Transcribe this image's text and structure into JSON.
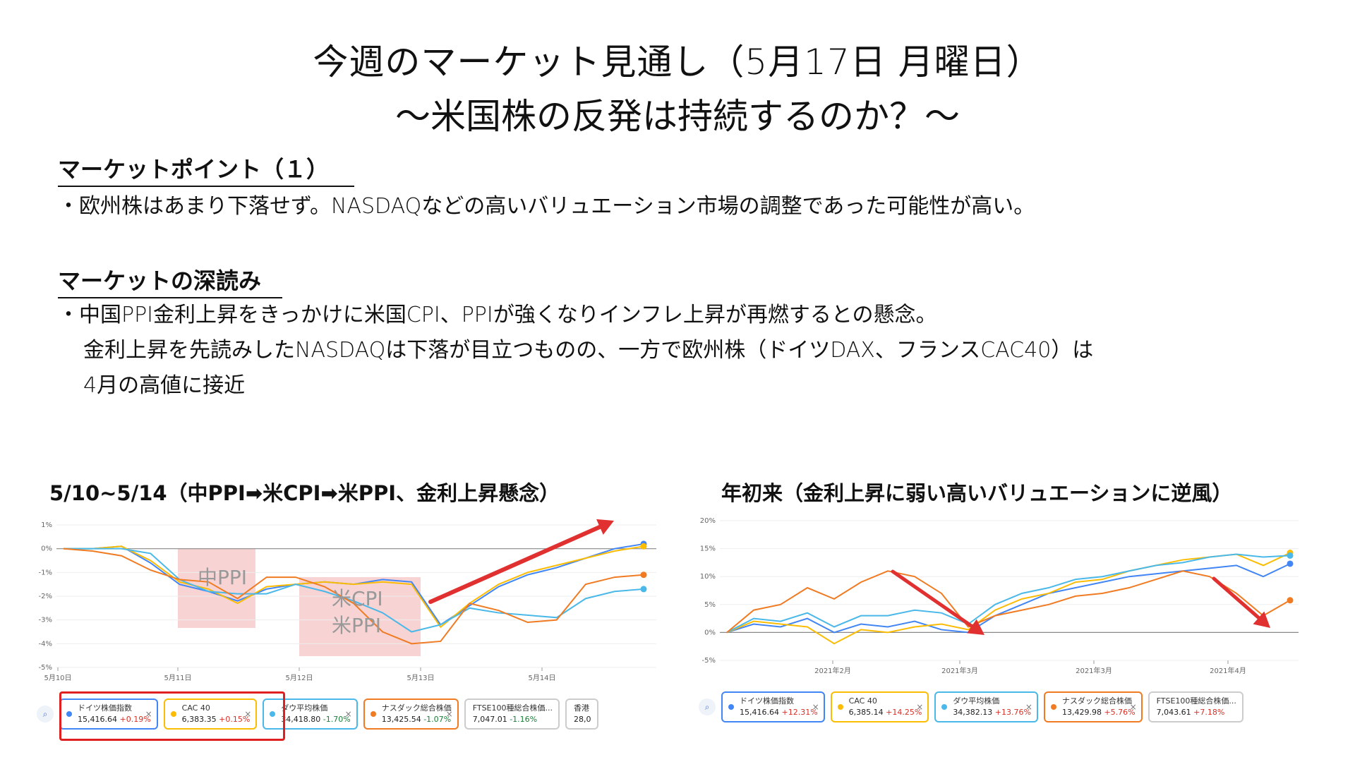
{
  "header": {
    "title_line1": "今週のマーケット見通し（5月17日 月曜日）",
    "title_line2": "〜米国株の反発は持続するのか？〜"
  },
  "section1": {
    "heading": "マーケットポイント（１）",
    "bullet": "・欧州株はあまり下落せず。NASDAQなどの高いバリュエーション市場の調整であった可能性が高い。"
  },
  "section2": {
    "heading": "マーケットの深読み",
    "line1": "・中国PPI金利上昇をきっかけに米国CPI、PPIが強くなりインフレ上昇が再燃するとの懸念。",
    "line2": "金利上昇を先読みしたNASDAQは下落が目立つものの、一方で欧州株（ドイツDAX、フランスCAC40）は",
    "line3": "4月の高値に接近"
  },
  "colors": {
    "dax": "#4285f4",
    "cac": "#fbbc04",
    "dow": "#4ab8e8",
    "nasdaq": "#f07b22",
    "annotation": "#e03030",
    "highlight": "#f4c4c4"
  },
  "chart_data": [
    {
      "type": "line",
      "title": "5/10~5/14（中PPI➡米CPI➡米PPI、金利上昇懸念）",
      "y_ticks": [
        "1%",
        "0%",
        "-1%",
        "-2%",
        "-3%",
        "-4%",
        "-5%"
      ],
      "ylim": [
        -5,
        1
      ],
      "x_ticks": [
        "5月10日",
        "5月11日",
        "5月12日",
        "5月13日",
        "5月14日"
      ],
      "annotations": [
        "中PPI",
        "米CPI",
        "米PPI"
      ],
      "series": [
        {
          "name": "ドイツ株価指数",
          "values": [
            0.0,
            0.0,
            0.1,
            -0.6,
            -1.5,
            -1.8,
            -2.2,
            -1.7,
            -1.5,
            -1.4,
            -1.5,
            -1.3,
            -1.4,
            -3.2,
            -2.4,
            -1.6,
            -1.1,
            -0.8,
            -0.4,
            0.0,
            0.2
          ]
        },
        {
          "name": "CAC 40",
          "values": [
            0.0,
            0.0,
            0.1,
            -0.5,
            -1.4,
            -1.7,
            -2.3,
            -1.6,
            -1.5,
            -1.4,
            -1.5,
            -1.4,
            -1.5,
            -3.3,
            -2.3,
            -1.5,
            -1.0,
            -0.7,
            -0.4,
            -0.1,
            0.1
          ]
        },
        {
          "name": "ダウ平均株価",
          "values": [
            0.0,
            0.0,
            0.0,
            -0.2,
            -1.3,
            -1.8,
            -1.9,
            -1.9,
            -1.5,
            -1.8,
            -2.2,
            -2.7,
            -3.5,
            -3.2,
            -2.5,
            -2.7,
            -2.8,
            -2.9,
            -2.1,
            -1.8,
            -1.7
          ]
        },
        {
          "name": "ナスダック総合株価",
          "values": [
            0.0,
            -0.1,
            -0.3,
            -0.9,
            -1.3,
            -1.4,
            -2.1,
            -1.2,
            -1.2,
            -1.6,
            -2.3,
            -3.5,
            -4.0,
            -3.9,
            -2.3,
            -2.6,
            -3.1,
            -3.0,
            -1.5,
            -1.2,
            -1.1
          ]
        }
      ],
      "legend": [
        {
          "name": "ドイツ株価指数",
          "value": "15,416.64",
          "change": "+0.19%"
        },
        {
          "name": "CAC 40",
          "value": "6,383.35",
          "change": "+0.15%"
        },
        {
          "name": "ダウ平均株価",
          "value": "34,418.80",
          "change": "-1.70%"
        },
        {
          "name": "ナスダック総合株価",
          "value": "13,425.54",
          "change": "-1.07%"
        },
        {
          "name": "FTSE100種総合株価...",
          "value": "7,047.01",
          "change": "-1.16%"
        },
        {
          "name": "香港",
          "value": "28,0",
          "change": ""
        }
      ]
    },
    {
      "type": "line",
      "title": "年初来（金利上昇に弱い高いバリュエーションに逆風）",
      "y_ticks": [
        "20%",
        "15%",
        "10%",
        "5%",
        "0%",
        "-5%"
      ],
      "ylim": [
        -5,
        20
      ],
      "x_ticks": [
        "2021年2月",
        "2021年3月",
        "2021年3月",
        "2021年4月"
      ],
      "series": [
        {
          "name": "ドイツ株価指数",
          "values": [
            0.0,
            1.5,
            1.0,
            2.5,
            0.0,
            1.5,
            1.0,
            2.0,
            0.5,
            0.0,
            3.0,
            5.0,
            7.0,
            8.0,
            9.0,
            10.0,
            10.5,
            11.0,
            11.5,
            12.0,
            10.0,
            12.3
          ]
        },
        {
          "name": "CAC 40",
          "values": [
            0.0,
            2.0,
            1.5,
            1.0,
            -2.0,
            0.5,
            0.0,
            1.0,
            1.5,
            0.5,
            4.0,
            6.0,
            7.0,
            9.0,
            9.5,
            11.0,
            12.0,
            13.0,
            13.5,
            14.0,
            12.0,
            14.25
          ]
        },
        {
          "name": "ダウ平均株価",
          "values": [
            0.0,
            2.5,
            2.0,
            3.5,
            1.0,
            3.0,
            3.0,
            4.0,
            3.5,
            1.5,
            5.0,
            7.0,
            8.0,
            9.5,
            10.0,
            11.0,
            12.0,
            12.5,
            13.5,
            14.0,
            13.5,
            13.76
          ]
        },
        {
          "name": "ナスダック総合株価",
          "values": [
            0.0,
            4.0,
            5.0,
            8.0,
            6.0,
            9.0,
            11.0,
            10.0,
            7.0,
            1.0,
            3.0,
            4.0,
            5.0,
            6.5,
            7.0,
            8.0,
            9.5,
            11.0,
            10.0,
            7.0,
            3.0,
            5.76
          ]
        }
      ],
      "legend": [
        {
          "name": "ドイツ株価指数",
          "value": "15,416.64",
          "change": "+12.31%"
        },
        {
          "name": "CAC 40",
          "value": "6,385.14",
          "change": "+14.25%"
        },
        {
          "name": "ダウ平均株価",
          "value": "34,382.13",
          "change": "+13.76%"
        },
        {
          "name": "ナスダック総合株価",
          "value": "13,429.98",
          "change": "+5.76%"
        },
        {
          "name": "FTSE100種総合株価...",
          "value": "7,043.61",
          "change": "+7.18%"
        }
      ]
    }
  ]
}
